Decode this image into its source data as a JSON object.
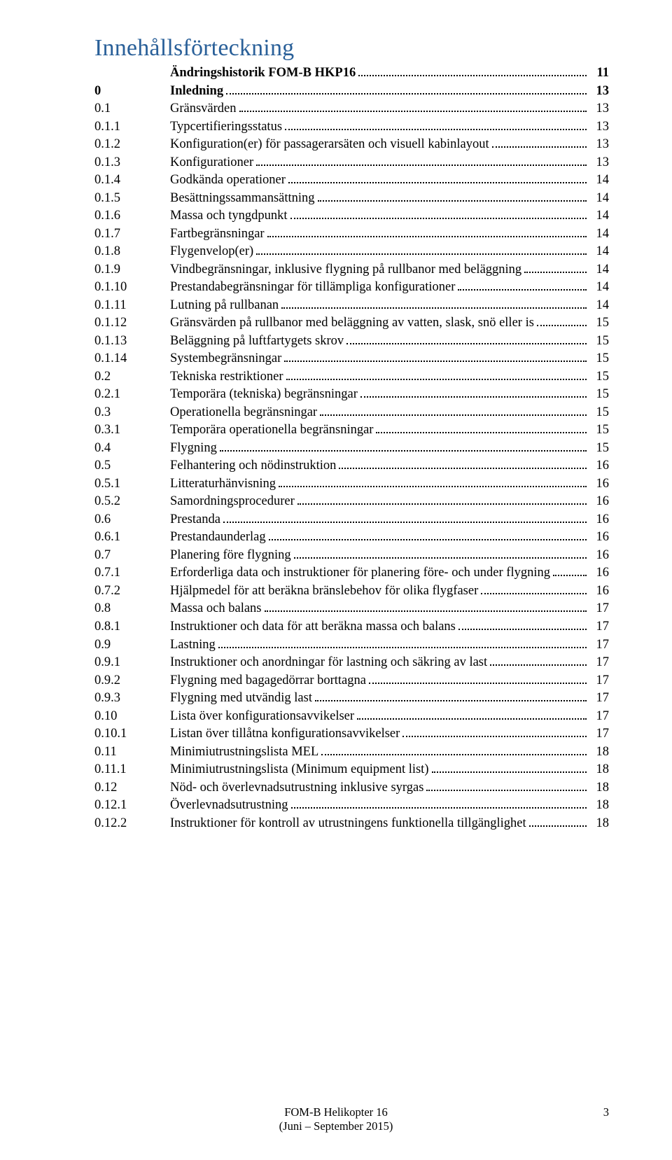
{
  "title": "Innehållsförteckning",
  "entries": [
    {
      "num": "",
      "text": "Ändringshistorik FOM-B HKP16",
      "page": "11",
      "bold": true,
      "wrap": false
    },
    {
      "num": "0",
      "text": "Inledning",
      "page": "13",
      "bold": true,
      "wrap": false
    },
    {
      "num": "0.1",
      "text": "Gränsvärden",
      "page": "13",
      "bold": false,
      "wrap": false
    },
    {
      "num": "0.1.1",
      "text": "Typcertifieringsstatus",
      "page": "13",
      "bold": false,
      "wrap": false
    },
    {
      "num": "0.1.2",
      "text": "Konfiguration(er) för passagerarsäten och visuell kabinlayout",
      "page": "13",
      "bold": false,
      "wrap": true
    },
    {
      "num": "0.1.3",
      "text": "Konfigurationer",
      "page": "13",
      "bold": false,
      "wrap": false
    },
    {
      "num": "0.1.4",
      "text": "Godkända operationer",
      "page": "14",
      "bold": false,
      "wrap": false
    },
    {
      "num": "0.1.5",
      "text": "Besättningssammansättning",
      "page": "14",
      "bold": false,
      "wrap": false
    },
    {
      "num": "0.1.6",
      "text": "Massa och tyngdpunkt",
      "page": "14",
      "bold": false,
      "wrap": false
    },
    {
      "num": "0.1.7",
      "text": "Fartbegränsningar",
      "page": "14",
      "bold": false,
      "wrap": false
    },
    {
      "num": "0.1.8",
      "text": "Flygenvelop(er)",
      "page": "14",
      "bold": false,
      "wrap": false
    },
    {
      "num": "0.1.9",
      "text": "Vindbegränsningar, inklusive flygning på rullbanor med beläggning",
      "page": "14",
      "bold": false,
      "wrap": true
    },
    {
      "num": "0.1.10",
      "text": "Prestandabegränsningar för tillämpliga konfigurationer",
      "page": "14",
      "bold": false,
      "wrap": false
    },
    {
      "num": "0.1.11",
      "text": "Lutning på rullbanan",
      "page": "14",
      "bold": false,
      "wrap": false
    },
    {
      "num": "0.1.12",
      "text": "Gränsvärden på rullbanor med beläggning av vatten, slask, snö eller is",
      "page": "15",
      "bold": false,
      "wrap": true
    },
    {
      "num": "0.1.13",
      "text": "Beläggning på luftfartygets skrov",
      "page": "15",
      "bold": false,
      "wrap": false
    },
    {
      "num": "0.1.14",
      "text": "Systembegränsningar",
      "page": "15",
      "bold": false,
      "wrap": false
    },
    {
      "num": "0.2",
      "text": "Tekniska restriktioner",
      "page": "15",
      "bold": false,
      "wrap": false
    },
    {
      "num": "0.2.1",
      "text": "Temporära (tekniska) begränsningar",
      "page": "15",
      "bold": false,
      "wrap": false
    },
    {
      "num": "0.3",
      "text": "Operationella begränsningar",
      "page": "15",
      "bold": false,
      "wrap": false
    },
    {
      "num": "0.3.1",
      "text": "Temporära operationella begränsningar",
      "page": "15",
      "bold": false,
      "wrap": false
    },
    {
      "num": "0.4",
      "text": "Flygning",
      "page": "15",
      "bold": false,
      "wrap": false
    },
    {
      "num": "0.5",
      "text": "Felhantering och nödinstruktion",
      "page": "16",
      "bold": false,
      "wrap": false
    },
    {
      "num": "0.5.1",
      "text": "Litteraturhänvisning",
      "page": "16",
      "bold": false,
      "wrap": false
    },
    {
      "num": "0.5.2",
      "text": "Samordningsprocedurer",
      "page": "16",
      "bold": false,
      "wrap": false
    },
    {
      "num": "0.6",
      "text": "Prestanda",
      "page": "16",
      "bold": false,
      "wrap": false
    },
    {
      "num": "0.6.1",
      "text": "Prestandaunderlag",
      "page": "16",
      "bold": false,
      "wrap": false
    },
    {
      "num": "0.7",
      "text": "Planering före flygning",
      "page": "16",
      "bold": false,
      "wrap": false
    },
    {
      "num": "0.7.1",
      "text": "Erforderliga data och instruktioner för planering före- och under flygning",
      "page": "16",
      "bold": false,
      "wrap": true
    },
    {
      "num": "0.7.2",
      "text": "Hjälpmedel för att beräkna bränslebehov för olika flygfaser",
      "page": "16",
      "bold": false,
      "wrap": true
    },
    {
      "num": "0.8",
      "text": "Massa och balans",
      "page": "17",
      "bold": false,
      "wrap": false
    },
    {
      "num": "0.8.1",
      "text": "Instruktioner och data för att beräkna massa och balans",
      "page": "17",
      "bold": false,
      "wrap": false
    },
    {
      "num": "0.9",
      "text": "Lastning",
      "page": "17",
      "bold": false,
      "wrap": false
    },
    {
      "num": "0.9.1",
      "text": "Instruktioner och anordningar för lastning och säkring av last",
      "page": "17",
      "bold": false,
      "wrap": true
    },
    {
      "num": "0.9.2",
      "text": "Flygning med bagagedörrar borttagna",
      "page": "17",
      "bold": false,
      "wrap": false
    },
    {
      "num": "0.9.3",
      "text": "Flygning med utvändig last",
      "page": "17",
      "bold": false,
      "wrap": false
    },
    {
      "num": "0.10",
      "text": "Lista över konfigurationsavvikelser",
      "page": "17",
      "bold": false,
      "wrap": false
    },
    {
      "num": "0.10.1",
      "text": "Listan över tillåtna konfigurationsavvikelser",
      "page": "17",
      "bold": false,
      "wrap": false
    },
    {
      "num": "0.11",
      "text": "Minimiutrustningslista MEL",
      "page": "18",
      "bold": false,
      "wrap": false
    },
    {
      "num": "0.11.1",
      "text": "Minimiutrustningslista (Minimum equipment list)",
      "page": "18",
      "bold": false,
      "wrap": false
    },
    {
      "num": "0.12",
      "text": "Nöd- och överlevnadsutrustning inklusive syrgas",
      "page": "18",
      "bold": false,
      "wrap": false
    },
    {
      "num": "0.12.1",
      "text": "Överlevnadsutrustning",
      "page": "18",
      "bold": false,
      "wrap": false
    },
    {
      "num": "0.12.2",
      "text": "Instruktioner för kontroll av utrustningens funktionella tillgänglighet",
      "page": "18",
      "bold": false,
      "wrap": true
    }
  ],
  "footer": {
    "line1": "FOM-B Helikopter 16",
    "line2": "(Juni – September 2015)",
    "pagenum": "3"
  }
}
